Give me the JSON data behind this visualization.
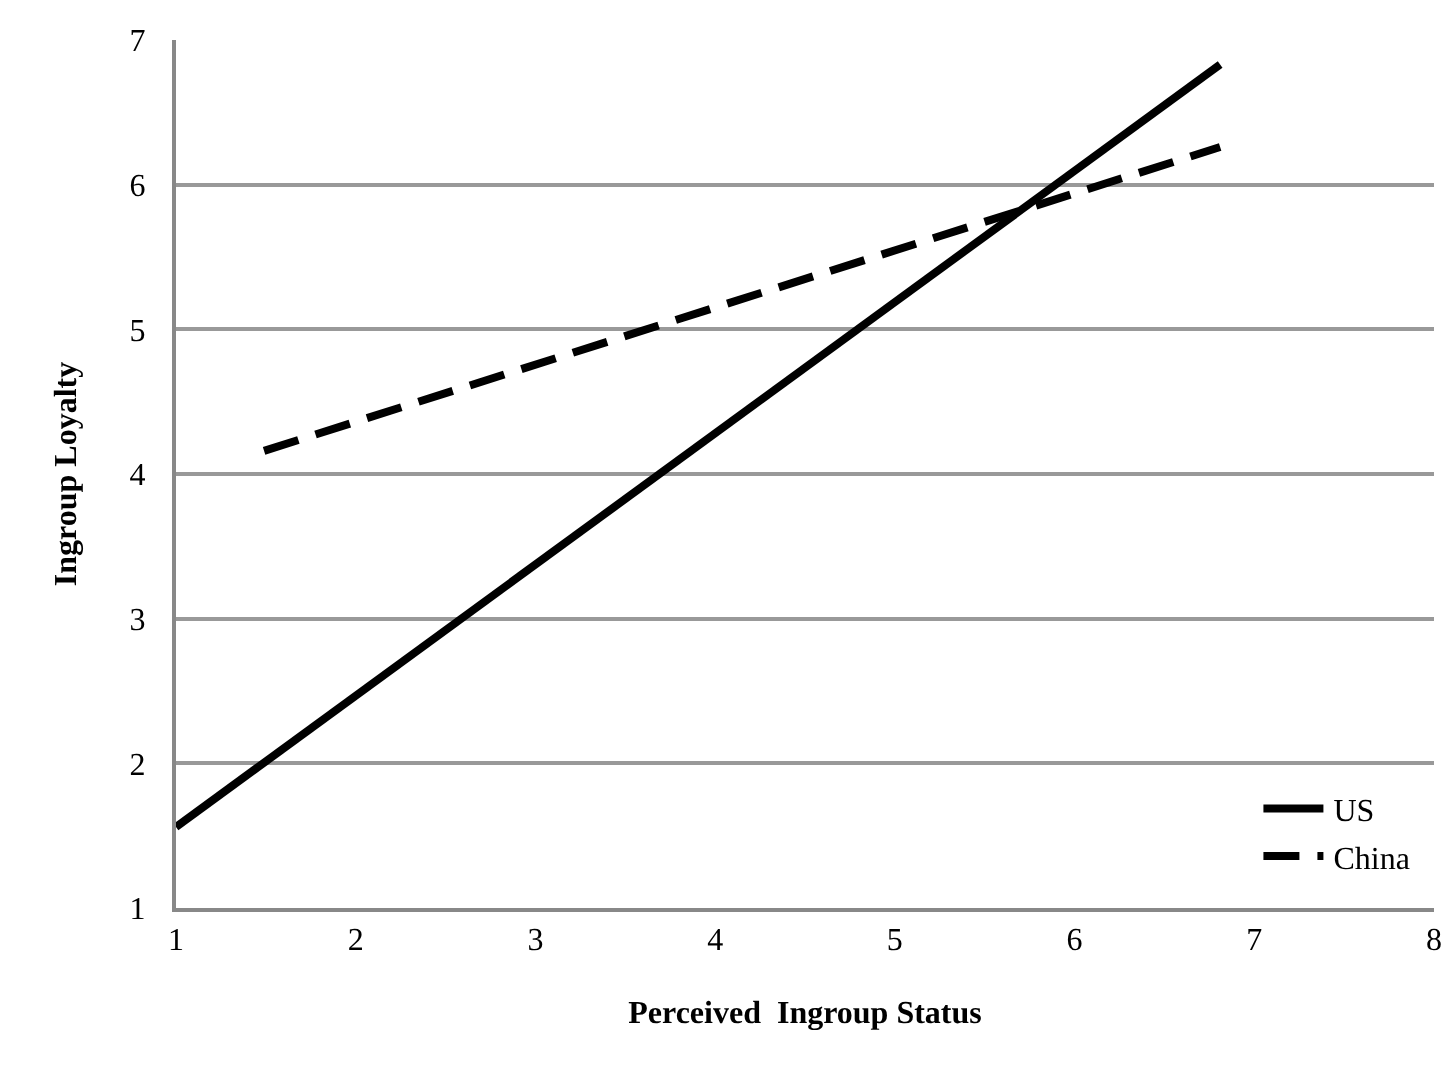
{
  "chart_data": {
    "type": "line",
    "xlabel": "Perceived  Ingroup Status",
    "ylabel": "Ingroup Loyalty",
    "series": [
      {
        "name": "US",
        "color": "#000000",
        "x": [
          1,
          6.81
        ],
        "values": [
          1.56,
          6.83
        ],
        "line_style": "solid"
      },
      {
        "name": "China",
        "color": "#000000",
        "x": [
          1.49,
          6.81
        ],
        "values": [
          4.16,
          6.26
        ],
        "line_style": "dashed"
      }
    ],
    "xlim": [
      1,
      8
    ],
    "xticks": [
      1,
      2,
      3,
      4,
      5,
      6,
      7,
      8
    ],
    "ylim": [
      1,
      7
    ],
    "yticks": [
      1,
      2,
      3,
      4,
      5,
      6,
      7
    ],
    "grid": "y",
    "legend": "bottom right",
    "marker": "none"
  }
}
